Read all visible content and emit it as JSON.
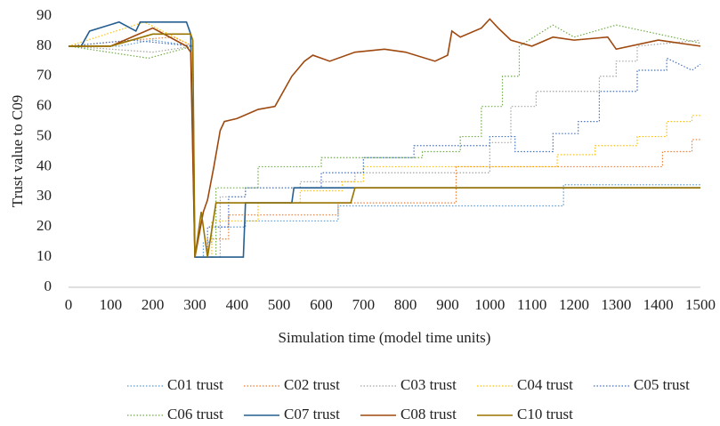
{
  "chart_data": {
    "type": "line",
    "ylabel": "Trust  value to C09",
    "xlabel": "Simulation time (model time units)",
    "xlim": [
      0,
      1500
    ],
    "ylim": [
      0,
      90
    ],
    "xticks": [
      0,
      100,
      200,
      300,
      400,
      500,
      600,
      700,
      800,
      900,
      1000,
      1100,
      1200,
      1300,
      1400,
      1500
    ],
    "yticks": [
      0,
      10,
      20,
      30,
      40,
      50,
      60,
      70,
      80,
      90
    ],
    "series": [
      {
        "name": "C01 trust",
        "color": "#5b9bd5",
        "dash": "dotted",
        "x": [
          0,
          120,
          200,
          295,
          300,
          320,
          320,
          340,
          340,
          420,
          420,
          640,
          640,
          1175,
          1175,
          1500
        ],
        "values": [
          80,
          80,
          82,
          80,
          10,
          10,
          15,
          15,
          20,
          20,
          22,
          22,
          27,
          27,
          34,
          34
        ]
      },
      {
        "name": "C02 trust",
        "color": "#ed7d31",
        "dash": "dotted",
        "x": [
          0,
          150,
          250,
          295,
          300,
          330,
          330,
          380,
          380,
          640,
          640,
          920,
          920,
          1410,
          1410,
          1480,
          1480,
          1500
        ],
        "values": [
          80,
          82,
          83,
          80,
          10,
          10,
          16,
          16,
          24,
          24,
          28,
          28,
          40,
          40,
          45,
          45,
          49,
          49
        ]
      },
      {
        "name": "C03 trust",
        "color": "#a5a5a5",
        "dash": "dotted",
        "x": [
          0,
          200,
          295,
          300,
          360,
          360,
          420,
          420,
          550,
          550,
          680,
          680,
          1000,
          1000,
          1050,
          1050,
          1110,
          1110,
          1260,
          1260,
          1300,
          1300,
          1350,
          1350,
          1500
        ],
        "values": [
          80,
          78,
          80,
          10,
          10,
          30,
          30,
          33,
          33,
          35,
          35,
          38,
          38,
          48,
          48,
          60,
          60,
          65,
          65,
          70,
          70,
          75,
          75,
          80,
          82
        ]
      },
      {
        "name": "C04 trust",
        "color": "#ffc000",
        "dash": "dotted",
        "x": [
          0,
          180,
          295,
          300,
          340,
          340,
          450,
          450,
          550,
          550,
          650,
          650,
          700,
          700,
          1160,
          1160,
          1250,
          1250,
          1350,
          1350,
          1420,
          1420,
          1480,
          1480,
          1500
        ],
        "values": [
          80,
          88,
          80,
          10,
          10,
          22,
          22,
          28,
          28,
          32,
          32,
          35,
          35,
          40,
          40,
          44,
          44,
          47,
          47,
          50,
          50,
          55,
          55,
          57,
          57
        ]
      },
      {
        "name": "C05 trust",
        "color": "#4472c4",
        "dash": "dotted",
        "x": [
          0,
          150,
          295,
          300,
          330,
          330,
          380,
          380,
          420,
          420,
          600,
          600,
          700,
          700,
          820,
          820,
          1000,
          1000,
          1060,
          1060,
          1150,
          1150,
          1210,
          1210,
          1260,
          1260,
          1350,
          1350,
          1420,
          1420,
          1480,
          1500
        ],
        "values": [
          80,
          82,
          80,
          10,
          10,
          20,
          20,
          30,
          30,
          33,
          33,
          38,
          38,
          43,
          43,
          47,
          47,
          50,
          50,
          45,
          45,
          51,
          51,
          55,
          55,
          65,
          65,
          72,
          72,
          76,
          72,
          74
        ]
      },
      {
        "name": "C06 trust",
        "color": "#70ad47",
        "dash": "dotted",
        "x": [
          0,
          190,
          295,
          300,
          350,
          350,
          450,
          450,
          600,
          600,
          840,
          840,
          930,
          930,
          980,
          980,
          1030,
          1030,
          1070,
          1070,
          1150,
          1200,
          1300,
          1400,
          1500
        ],
        "values": [
          80,
          76,
          80,
          10,
          10,
          33,
          33,
          40,
          40,
          43,
          43,
          45,
          45,
          50,
          50,
          60,
          60,
          70,
          70,
          80,
          87,
          83,
          87,
          84,
          81
        ]
      },
      {
        "name": "C07 trust",
        "color": "#255e91",
        "dash": "solid",
        "x": [
          0,
          30,
          50,
          120,
          160,
          170,
          280,
          290,
          300,
          415,
          420,
          530,
          535,
          1500
        ],
        "values": [
          80,
          80,
          85,
          88,
          85,
          88,
          88,
          84,
          10,
          10,
          28,
          28,
          33,
          33
        ]
      },
      {
        "name": "C08 trust",
        "color": "#9e480e",
        "dash": "solid",
        "x": [
          0,
          100,
          200,
          280,
          290,
          300,
          320,
          330,
          345,
          360,
          370,
          400,
          450,
          490,
          510,
          530,
          560,
          580,
          620,
          680,
          750,
          800,
          870,
          900,
          910,
          930,
          980,
          1000,
          1020,
          1050,
          1100,
          1150,
          1200,
          1280,
          1300,
          1400,
          1450,
          1500
        ],
        "values": [
          80,
          80,
          86,
          80,
          78,
          10,
          25,
          29,
          40,
          52,
          55,
          56,
          59,
          60,
          65,
          70,
          75,
          77,
          75,
          78,
          79,
          78,
          75,
          77,
          85,
          83,
          86,
          89,
          86,
          82,
          80,
          83,
          82,
          83,
          79,
          82,
          81,
          80
        ]
      },
      {
        "name": "C10 trust",
        "color": "#997300",
        "dash": "solid",
        "x": [
          0,
          100,
          200,
          290,
          295,
          300,
          315,
          330,
          350,
          670,
          680,
          1500
        ],
        "values": [
          80,
          80,
          84,
          84,
          82,
          10,
          25,
          10,
          28,
          28,
          33,
          33
        ]
      }
    ]
  }
}
